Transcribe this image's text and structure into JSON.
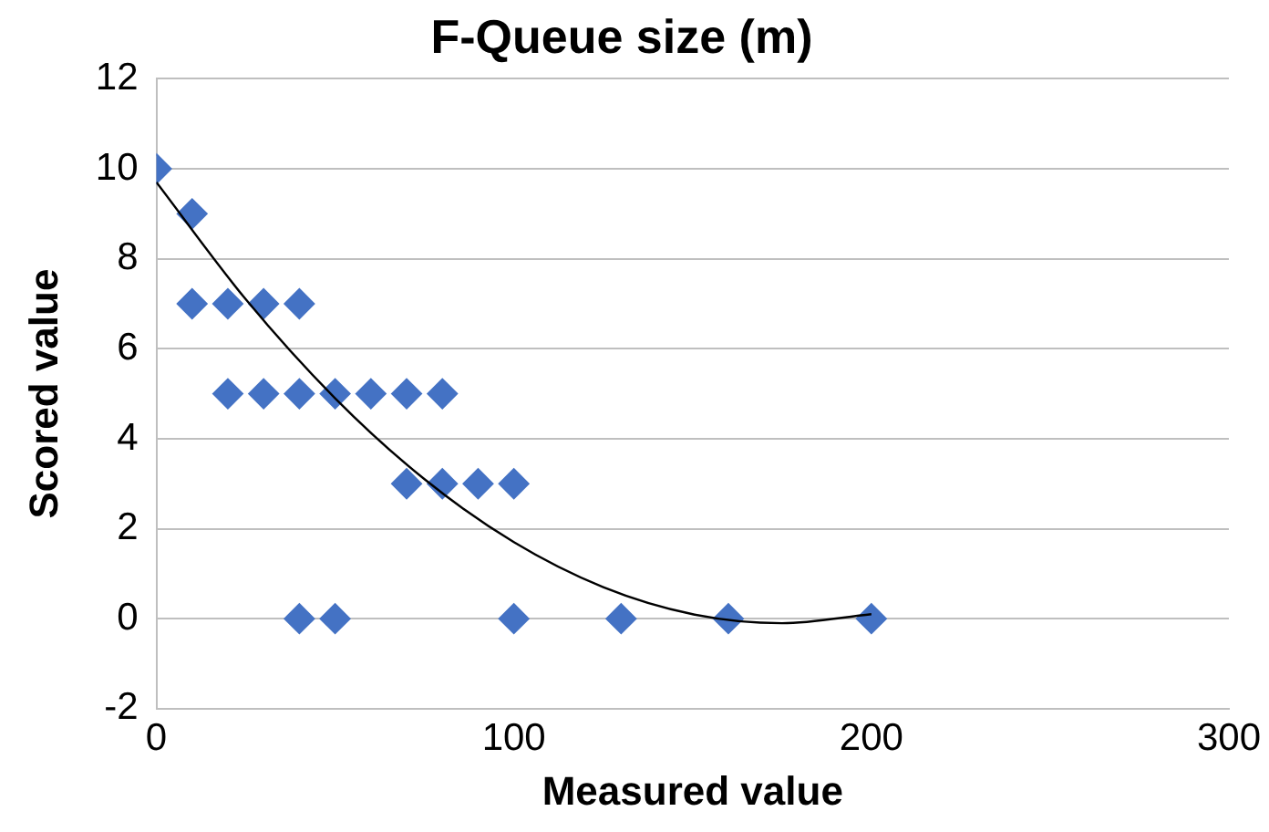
{
  "chart_data": {
    "type": "scatter",
    "title": "F-Queue size (m)",
    "xlabel": "Measured value",
    "ylabel": "Scored value",
    "xlim": [
      0,
      300
    ],
    "xticks": [
      0,
      100,
      200,
      300
    ],
    "ylim": [
      -2,
      12
    ],
    "yticks": [
      -2,
      0,
      2,
      4,
      6,
      8,
      10,
      12
    ],
    "grid": "y",
    "marker": "diamond",
    "series": [
      {
        "type": "scatter",
        "color": "#4472c4",
        "x": [
          0,
          10,
          10,
          20,
          30,
          40,
          20,
          30,
          40,
          50,
          60,
          70,
          80,
          70,
          80,
          90,
          100,
          40,
          50,
          100,
          130,
          160,
          200
        ],
        "values": [
          10,
          9,
          7,
          7,
          7,
          7,
          5,
          5,
          5,
          5,
          5,
          5,
          5,
          3,
          3,
          3,
          3,
          0,
          0,
          0,
          0,
          0,
          0
        ]
      },
      {
        "type": "line",
        "color": "#000000",
        "marker": "none",
        "x": [
          0,
          25,
          50,
          75,
          100,
          125,
          150,
          175,
          200
        ],
        "values": [
          9.7,
          7.1,
          4.9,
          3.1,
          1.7,
          0.7,
          0.1,
          -0.1,
          0.1
        ]
      }
    ]
  }
}
